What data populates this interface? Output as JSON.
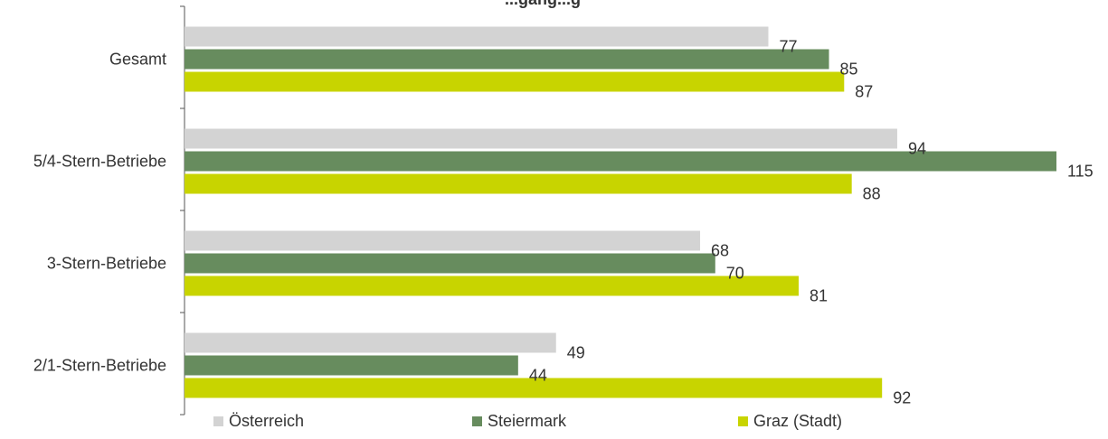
{
  "chart_data": {
    "type": "bar",
    "orientation": "horizontal",
    "title": "...gang...g",
    "categories": [
      "Gesamt",
      "5/4-Stern-Betriebe",
      "3-Stern-Betriebe",
      "2/1-Stern-Betriebe"
    ],
    "series": [
      {
        "name": "Österreich",
        "color": "#d3d3d3",
        "values": [
          77,
          94,
          68,
          49
        ]
      },
      {
        "name": "Steiermark",
        "color": "#678c5e",
        "values": [
          85,
          115,
          70,
          44
        ]
      },
      {
        "name": "Graz (Stadt)",
        "color": "#c8d400",
        "values": [
          87,
          88,
          81,
          92
        ]
      }
    ],
    "xlim": [
      0,
      115
    ],
    "grid": false,
    "legend_position": "bottom"
  }
}
